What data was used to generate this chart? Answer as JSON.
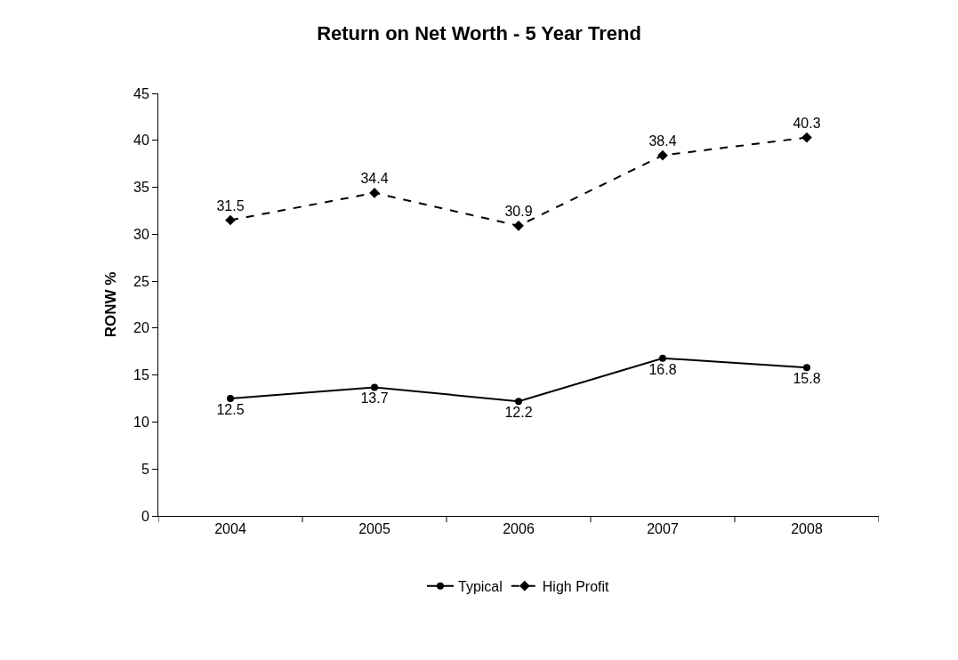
{
  "chart_data": {
    "type": "line",
    "title": "Return on Net Worth - 5 Year Trend",
    "ylabel": "RONW %",
    "categories": [
      "2004",
      "2005",
      "2006",
      "2007",
      "2008"
    ],
    "series": [
      {
        "name": "Typical",
        "color": "#000000",
        "values": [
          12.5,
          13.7,
          12.2,
          16.8,
          15.8
        ],
        "marker": "circle",
        "line_style": "solid"
      },
      {
        "name": "High Profit",
        "color": "#000000",
        "values": [
          31.5,
          34.4,
          30.9,
          38.4,
          40.3
        ],
        "marker": "diamond",
        "line_style": "dashed"
      }
    ],
    "ylim": [
      0,
      45
    ],
    "yticks": [
      0,
      5,
      10,
      15,
      20,
      25,
      30,
      35,
      40,
      45
    ],
    "data_labels": true,
    "grid": false,
    "legend": "bottom"
  }
}
